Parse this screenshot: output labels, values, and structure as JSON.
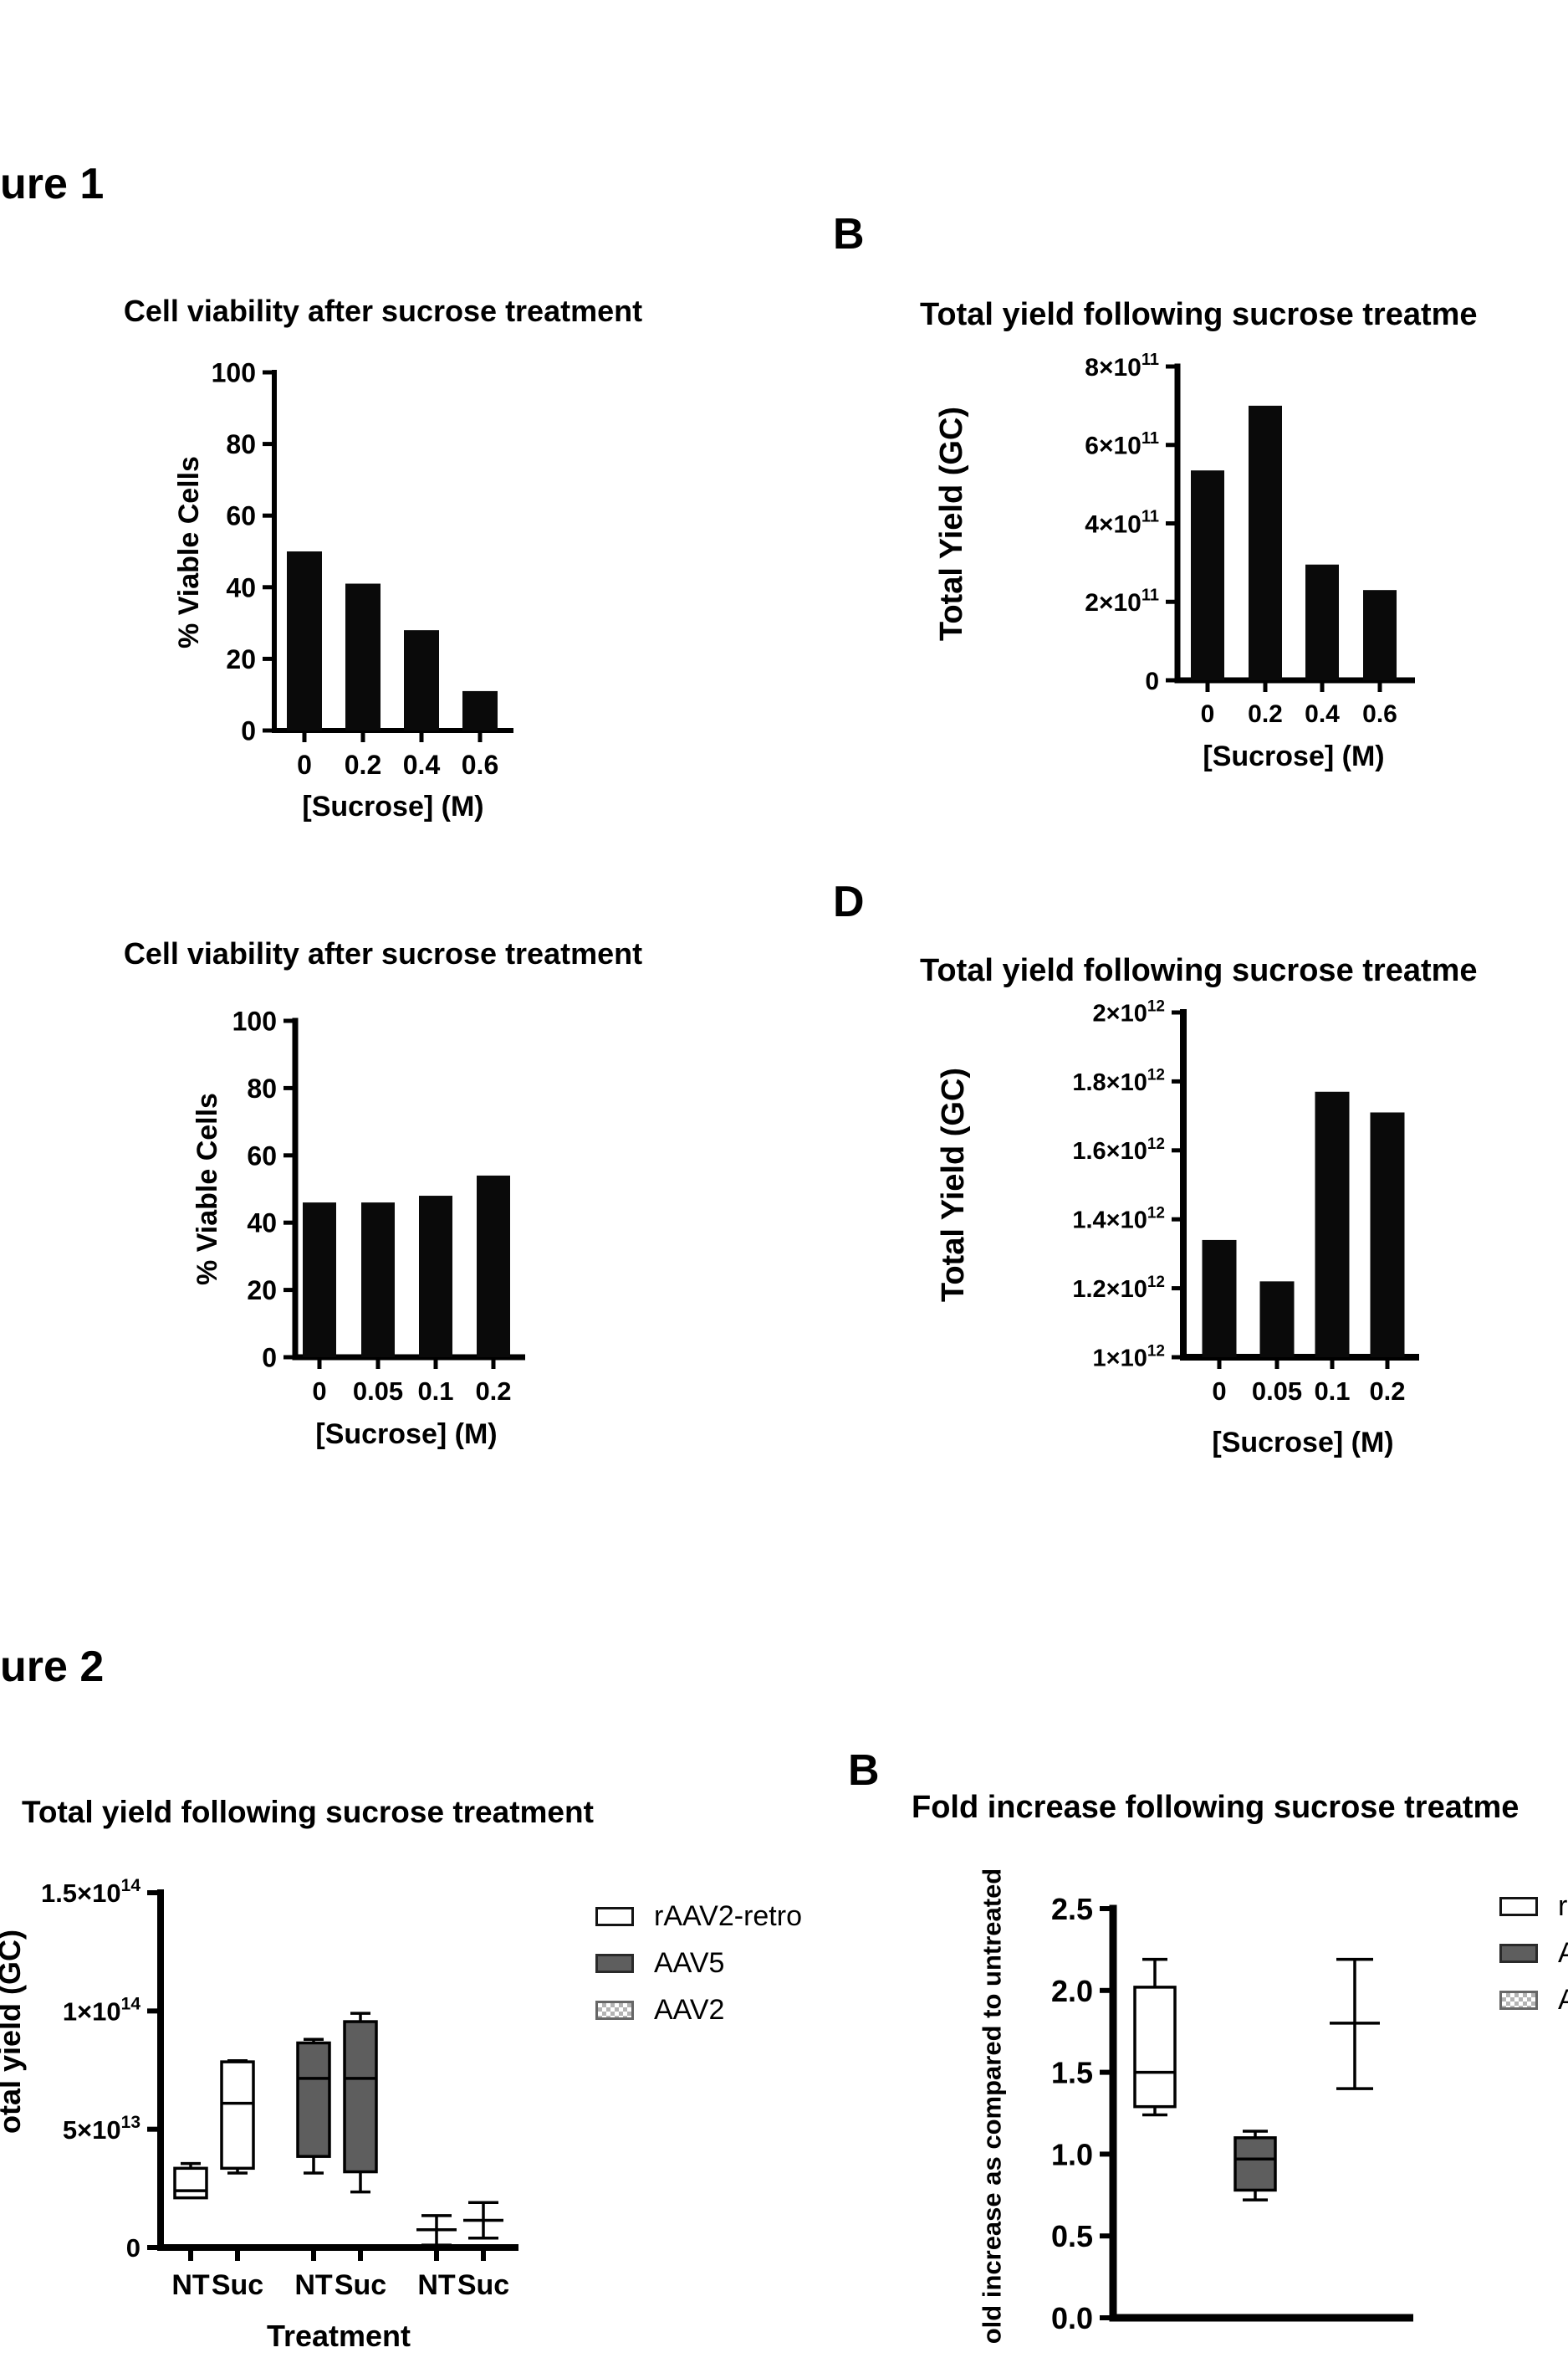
{
  "colors": {
    "background": "#ffffff",
    "bar": "#0a0a0a",
    "axis": "#000000",
    "text": "#000000",
    "aav5_gray": "#5e5e5e",
    "checker_gray": "#b3b3b3"
  },
  "figure1": {
    "label": "ure 1",
    "panelB_letter": "B",
    "panelD_letter": "D"
  },
  "figure2": {
    "label": "ure 2",
    "panelB_letter": "B",
    "panelA_legend": [
      {
        "label": "rAAV2-retro",
        "swatch": "white"
      },
      {
        "label": "AAV5",
        "swatch": "gray"
      },
      {
        "label": "AAV2",
        "swatch": "checker"
      }
    ],
    "panelB_legend": [
      {
        "label": "r",
        "swatch": "white"
      },
      {
        "label": "A",
        "swatch": "gray"
      },
      {
        "label": "A",
        "swatch": "checker"
      }
    ]
  },
  "chart_data": [
    {
      "id": "fig1a",
      "type": "bar",
      "title": "Cell viability after sucrose treatment",
      "ylabel": "% Viable Cells",
      "xlabel": "[Sucrose] (M)",
      "categories": [
        "0",
        "0.2",
        "0.4",
        "0.6"
      ],
      "values": [
        50,
        41,
        28,
        11
      ],
      "ylim": [
        0,
        100
      ],
      "yticks": [
        {
          "v": 0,
          "t": "0"
        },
        {
          "v": 20,
          "t": "20"
        },
        {
          "v": 40,
          "t": "40"
        },
        {
          "v": 60,
          "t": "60"
        },
        {
          "v": 80,
          "t": "80"
        },
        {
          "v": 100,
          "t": "100"
        }
      ],
      "layout": {
        "axisX": 328,
        "baseY": 873,
        "topY": 445,
        "xEnd": 614,
        "barW": 42,
        "centers": [
          364,
          434,
          504,
          574
        ],
        "axisW": 6,
        "tickW": 5,
        "tickLen": 14,
        "yTickFont": 32,
        "supFont": 21,
        "xTickFont": 32
      }
    },
    {
      "id": "fig1b",
      "type": "bar",
      "title": "Total yield following sucrose treatme",
      "ylabel": "Total Yield (GC)",
      "xlabel": "[Sucrose] (M)",
      "categories": [
        "0",
        "0.2",
        "0.4",
        "0.6"
      ],
      "values": [
        535000000000.0,
        700000000000.0,
        295000000000.0,
        230000000000.0
      ],
      "ylim": [
        0,
        800000000000.0
      ],
      "yticks": [
        {
          "v": 0,
          "t": "0"
        },
        {
          "v": 200000000000.0,
          "t": "2×10",
          "s": "11"
        },
        {
          "v": 400000000000.0,
          "t": "4×10",
          "s": "11"
        },
        {
          "v": 600000000000.0,
          "t": "6×10",
          "s": "11"
        },
        {
          "v": 800000000000.0,
          "t": "8×10",
          "s": "11"
        }
      ],
      "layout": {
        "axisX": 1408,
        "baseY": 813,
        "topY": 438,
        "xEnd": 1692,
        "barW": 40,
        "centers": [
          1444,
          1513,
          1581,
          1650
        ],
        "axisW": 7,
        "tickW": 5,
        "tickLen": 14,
        "yTickFont": 30,
        "supFont": 20,
        "xTickFont": 30
      }
    },
    {
      "id": "fig1c",
      "type": "bar",
      "title": "Cell viability after sucrose treatment",
      "ylabel": "% Viable Cells",
      "xlabel": "[Sucrose] (M)",
      "categories": [
        "0",
        "0.05",
        "0.1",
        "0.2"
      ],
      "values": [
        46,
        46,
        48,
        54
      ],
      "ylim": [
        0,
        100
      ],
      "yticks": [
        {
          "v": 0,
          "t": "0"
        },
        {
          "v": 20,
          "t": "20"
        },
        {
          "v": 40,
          "t": "40"
        },
        {
          "v": 60,
          "t": "60"
        },
        {
          "v": 80,
          "t": "80"
        },
        {
          "v": 100,
          "t": "100"
        }
      ],
      "layout": {
        "axisX": 353,
        "baseY": 1622,
        "topY": 1220,
        "xEnd": 628,
        "barW": 40,
        "centers": [
          382,
          452,
          521,
          590
        ],
        "axisW": 7,
        "tickW": 5,
        "tickLen": 14,
        "yTickFont": 32,
        "supFont": 21,
        "xTickFont": 31
      }
    },
    {
      "id": "fig1d",
      "type": "bar",
      "title": "Total yield following sucrose treatme",
      "ylabel": "Total Yield (GC)",
      "xlabel": "[Sucrose] (M)",
      "categories": [
        "0",
        "0.05",
        "0.1",
        "0.2"
      ],
      "values": [
        1340000000000.0,
        1220000000000.0,
        1770000000000.0,
        1710000000000.0
      ],
      "ylim": [
        1000000000000.0,
        2000000000000.0
      ],
      "yticks": [
        {
          "v": 1000000000000.0,
          "t": "1×10",
          "s": "12"
        },
        {
          "v": 1200000000000.0,
          "t": "1.2×10",
          "s": "12"
        },
        {
          "v": 1400000000000.0,
          "t": "1.4×10",
          "s": "12"
        },
        {
          "v": 1600000000000.0,
          "t": "1.6×10",
          "s": "12"
        },
        {
          "v": 1800000000000.0,
          "t": "1.8×10",
          "s": "12"
        },
        {
          "v": 2000000000000.0,
          "t": "2×10",
          "s": "12"
        }
      ],
      "layout": {
        "axisX": 1415,
        "baseY": 1622,
        "topY": 1210,
        "xEnd": 1697,
        "barW": 41,
        "centers": [
          1458,
          1527,
          1593,
          1659
        ],
        "axisW": 8,
        "tickW": 5,
        "tickLen": 14,
        "yTickFont": 29,
        "supFont": 19,
        "xTickFont": 31
      }
    },
    {
      "id": "fig2a",
      "type": "box",
      "title": "Total yield following sucrose treatment",
      "ylabel": "otal yield (GC)",
      "xlabel": "Treatment",
      "legend_position": "right",
      "categories": [
        "NT",
        "Suc",
        "NT",
        "Suc",
        "NT",
        "Suc"
      ],
      "ylim": [
        0,
        150000000000000.0
      ],
      "yticks": [
        {
          "v": 0,
          "t": "0"
        },
        {
          "v": 50000000000000.0,
          "t": "5×10",
          "s": "13"
        },
        {
          "v": 100000000000000.0,
          "t": "1×10",
          "s": "14"
        },
        {
          "v": 150000000000000.0,
          "t": "1.5×10",
          "s": "14"
        }
      ],
      "columns": [
        {
          "group": "rAAV2-retro",
          "cat": "NT",
          "style": "box",
          "fill": "white",
          "q1": 21000000000000.0,
          "med": 24000000000000.0,
          "q3": 33500000000000.0,
          "lo": 21000000000000.0,
          "hi": 35500000000000.0
        },
        {
          "group": "rAAV2-retro",
          "cat": "Suc",
          "style": "box",
          "fill": "white",
          "q1": 33500000000000.0,
          "med": 61000000000000.0,
          "q3": 78500000000000.0,
          "lo": 31500000000000.0,
          "hi": 79000000000000.0
        },
        {
          "group": "AAV5",
          "cat": "NT",
          "style": "box",
          "fill": "gray",
          "q1": 38500000000000.0,
          "med": 71500000000000.0,
          "q3": 86500000000000.0,
          "lo": 31500000000000.0,
          "hi": 88000000000000.0
        },
        {
          "group": "AAV5",
          "cat": "Suc",
          "style": "box",
          "fill": "gray",
          "q1": 32000000000000.0,
          "med": 71500000000000.0,
          "q3": 95500000000000.0,
          "lo": 23500000000000.0,
          "hi": 99000000000000.0
        },
        {
          "group": "AAV2",
          "cat": "NT",
          "style": "errorbar",
          "mid": 7500000000000.0,
          "lo": 1000000000000.0,
          "hi": 13500000000000.0
        },
        {
          "group": "AAV2",
          "cat": "Suc",
          "style": "errorbar",
          "mid": 11500000000000.0,
          "lo": 4000000000000.0,
          "hi": 19000000000000.0
        }
      ],
      "layout": {
        "axisX": 192,
        "baseY": 2686,
        "topY": 2262,
        "xEnd": 620,
        "boxW": 38,
        "centers": [
          228,
          284,
          375,
          431,
          522,
          578
        ],
        "axisW": 8,
        "tickW": 6,
        "tickLen": 16,
        "yTickFont": 31,
        "supFont": 21,
        "xTickFont": 34,
        "boxStroke": 3.5,
        "capW": 24,
        "errCapW": 36,
        "errMidW": 48
      }
    },
    {
      "id": "fig2b",
      "type": "box",
      "title": "Fold increase following sucrose treatme",
      "ylabel": "old increase as compared to untreated",
      "legend_position": "right",
      "categories": [],
      "ylim": [
        0,
        2.5
      ],
      "yticks": [
        {
          "v": 0,
          "t": "0.0"
        },
        {
          "v": 0.5,
          "t": "0.5"
        },
        {
          "v": 1,
          "t": "1.0"
        },
        {
          "v": 1.5,
          "t": "1.5"
        },
        {
          "v": 2,
          "t": "2.0"
        },
        {
          "v": 2.5,
          "t": "2.5"
        }
      ],
      "columns": [
        {
          "group": "rAAV2-retro",
          "style": "box",
          "fill": "white",
          "q1": 1.29,
          "med": 1.5,
          "q3": 2.02,
          "lo": 1.24,
          "hi": 2.19
        },
        {
          "group": "AAV5",
          "style": "box",
          "fill": "gray",
          "q1": 0.78,
          "med": 0.97,
          "q3": 1.1,
          "lo": 0.72,
          "hi": 1.14
        },
        {
          "group": "AAV2",
          "style": "errorbar",
          "mid": 1.8,
          "lo": 1.4,
          "hi": 2.19
        }
      ],
      "layout": {
        "axisX": 1331,
        "baseY": 2770,
        "topY": 2281,
        "xEnd": 1690,
        "boxW": 48,
        "centers": [
          1381,
          1501,
          1620
        ],
        "axisW": 9,
        "tickW": 6,
        "tickLen": 16,
        "yTickFont": 36,
        "supFont": 24,
        "xTickFont": 32,
        "boxStroke": 3.5,
        "capW": 30,
        "errCapW": 44,
        "errMidW": 60
      }
    }
  ]
}
